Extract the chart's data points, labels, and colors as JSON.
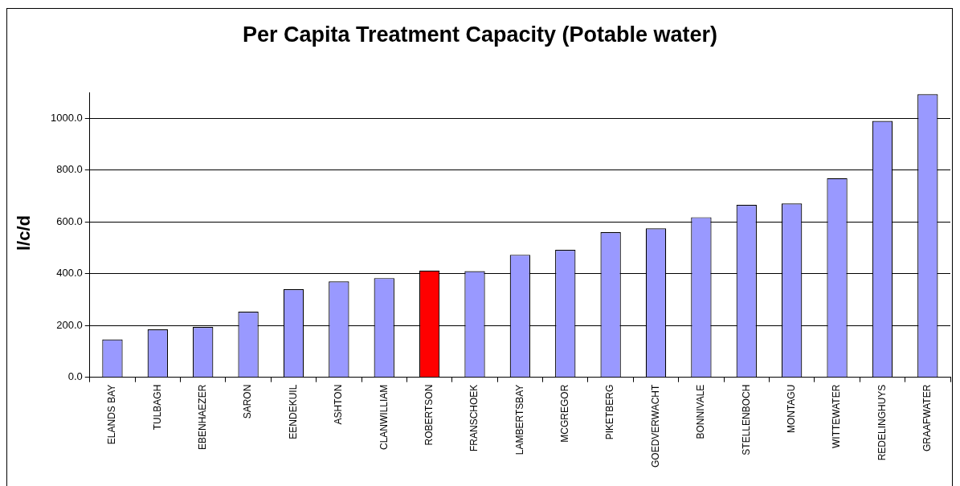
{
  "chart_data": {
    "type": "bar",
    "title": "Per Capita Treatment Capacity (Potable water)",
    "ylabel": "l/c/d",
    "categories": [
      "ELANDS BAY",
      "TULBAGH",
      "EBENHAEZER",
      "SARON",
      "EENDEKUIL",
      "ASHTON",
      "CLANWILLIAM",
      "ROBERTSON",
      "FRANSCHOEK",
      "LAMBERTSBAY",
      "MCGREGOR",
      "PIKETBERG",
      "GOEDVERWACHT",
      "BONNIVALE",
      "STELLENBOCH",
      "MONTAGU",
      "WITTEWATER",
      "REDELINGHUYS",
      "GRAAFWATER"
    ],
    "values": [
      146,
      185,
      194,
      253,
      340,
      370,
      383,
      412,
      410,
      473,
      492,
      560,
      575,
      618,
      666,
      671,
      769,
      990,
      1093
    ],
    "colors": [
      "#9999ff",
      "#9999ff",
      "#9999ff",
      "#9999ff",
      "#9999ff",
      "#9999ff",
      "#9999ff",
      "#ff0000",
      "#9999ff",
      "#9999ff",
      "#9999ff",
      "#9999ff",
      "#9999ff",
      "#9999ff",
      "#9999ff",
      "#9999ff",
      "#9999ff",
      "#9999ff",
      "#9999ff"
    ],
    "ylim": [
      0,
      1100
    ],
    "yticks": [
      {
        "value": 0,
        "label": "0.0"
      },
      {
        "value": 200,
        "label": "200.0"
      },
      {
        "value": 400,
        "label": "400.0"
      },
      {
        "value": 600,
        "label": "600.0"
      },
      {
        "value": 800,
        "label": "800.0"
      },
      {
        "value": 1000,
        "label": "1000.0"
      }
    ],
    "grid": "y",
    "legend": false
  }
}
